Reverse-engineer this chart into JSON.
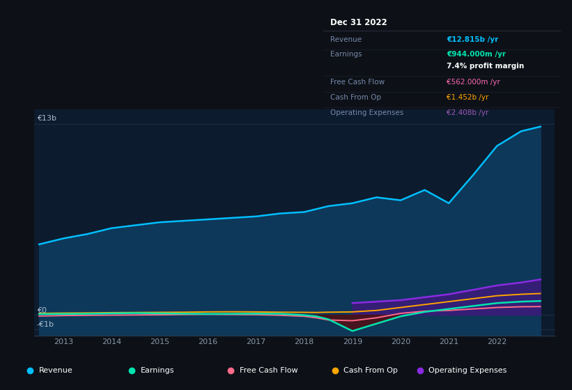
{
  "bg_color": "#0d1117",
  "plot_bg_color": "#0d1b2e",
  "title_box": {
    "date": "Dec 31 2022",
    "rows": [
      {
        "label": "Revenue",
        "value": "€12.815b /yr",
        "value_color": "#00bfff"
      },
      {
        "label": "Earnings",
        "value": "€944.000m /yr",
        "value_color": "#00e5b0"
      },
      {
        "label": "",
        "value": "7.4% profit margin",
        "value_color": "#ffffff"
      },
      {
        "label": "Free Cash Flow",
        "value": "€562.000m /yr",
        "value_color": "#ff69b4"
      },
      {
        "label": "Cash From Op",
        "value": "€1.452b /yr",
        "value_color": "#ffa500"
      },
      {
        "label": "Operating Expenses",
        "value": "€2.408b /yr",
        "value_color": "#9b59b6"
      }
    ]
  },
  "years": [
    2012.5,
    2013,
    2013.5,
    2014,
    2014.5,
    2015,
    2015.5,
    2016,
    2016.5,
    2017,
    2017.5,
    2018,
    2018.25,
    2018.5,
    2019,
    2019.5,
    2020,
    2020.5,
    2021,
    2021.5,
    2022,
    2022.5,
    2022.9
  ],
  "revenue": [
    4800,
    5200,
    5500,
    5900,
    6100,
    6300,
    6400,
    6500,
    6600,
    6700,
    6900,
    7000,
    7200,
    7400,
    7600,
    8000,
    7800,
    8500,
    7600,
    9500,
    11500,
    12500,
    12815
  ],
  "earnings": [
    50,
    60,
    70,
    100,
    120,
    100,
    80,
    60,
    70,
    80,
    70,
    -20,
    -100,
    -300,
    -1100,
    -600,
    -100,
    200,
    400,
    600,
    800,
    900,
    944
  ],
  "free_cash_flow": [
    -80,
    -50,
    -30,
    -20,
    -10,
    0,
    20,
    30,
    20,
    10,
    -30,
    -100,
    -200,
    -350,
    -400,
    -200,
    100,
    250,
    300,
    400,
    500,
    550,
    562
  ],
  "cash_from_op": [
    100,
    120,
    130,
    150,
    160,
    170,
    180,
    200,
    210,
    200,
    180,
    170,
    160,
    180,
    200,
    300,
    500,
    700,
    900,
    1100,
    1300,
    1400,
    1452
  ],
  "operating_expenses": [
    null,
    null,
    null,
    null,
    null,
    null,
    null,
    null,
    null,
    null,
    null,
    null,
    null,
    null,
    800,
    900,
    1000,
    1200,
    1400,
    1700,
    2000,
    2200,
    2408
  ],
  "revenue_color": "#00bfff",
  "earnings_color": "#00e5b0",
  "free_cash_flow_color": "#ff6b8a",
  "cash_from_op_color": "#ffa500",
  "operating_expenses_color": "#8a2be2",
  "ylabel_13b": "€13b",
  "ylabel_zero": "€0",
  "ylabel_neg": "-€1b",
  "ylim_min": -1400,
  "ylim_max": 14000,
  "xlim_min": 2012.4,
  "xlim_max": 2023.2,
  "xticks": [
    2013,
    2014,
    2015,
    2016,
    2017,
    2018,
    2019,
    2020,
    2021,
    2022
  ],
  "legend_items": [
    {
      "label": "Revenue",
      "color": "#00bfff"
    },
    {
      "label": "Earnings",
      "color": "#00e5b0"
    },
    {
      "label": "Free Cash Flow",
      "color": "#ff6b8a"
    },
    {
      "label": "Cash From Op",
      "color": "#ffa500"
    },
    {
      "label": "Operating Expenses",
      "color": "#8a2be2"
    }
  ]
}
